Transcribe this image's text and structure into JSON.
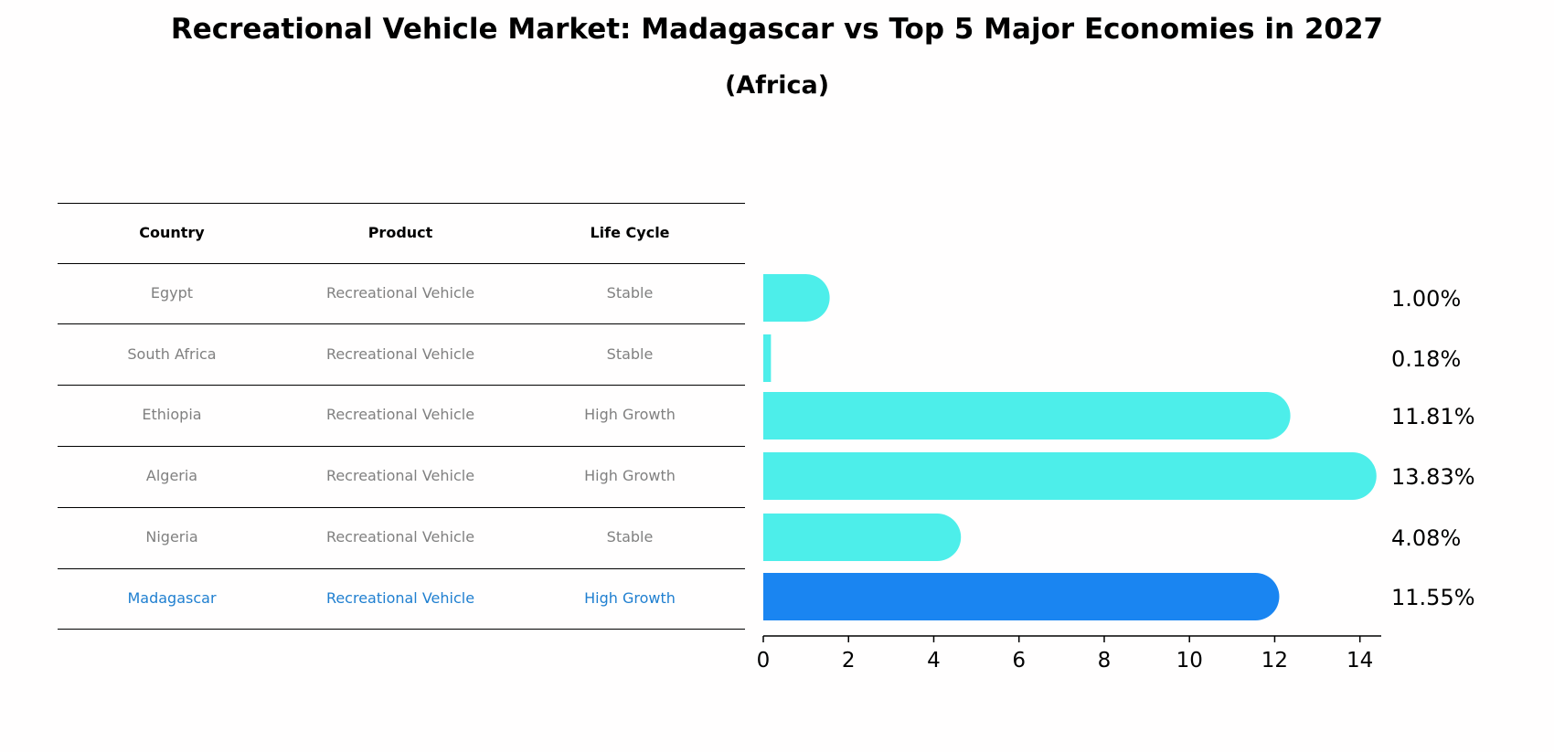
{
  "title": "Recreational Vehicle Market: Madagascar vs Top 5 Major Economies in 2027",
  "subtitle": "(Africa)",
  "colors": {
    "bar": "#4deeea",
    "highlight": "#1a85f1",
    "muted_text": "#808080",
    "highlight_text": "#1f7fd0"
  },
  "table": {
    "headers": [
      "Country",
      "Product",
      "Life Cycle"
    ],
    "rows": [
      {
        "country": "Egypt",
        "product": "Recreational Vehicle",
        "life_cycle": "Stable",
        "highlight": false
      },
      {
        "country": "South Africa",
        "product": "Recreational Vehicle",
        "life_cycle": "Stable",
        "highlight": false
      },
      {
        "country": "Ethiopia",
        "product": "Recreational Vehicle",
        "life_cycle": "High Growth",
        "highlight": false
      },
      {
        "country": "Algeria",
        "product": "Recreational Vehicle",
        "life_cycle": "High Growth",
        "highlight": false
      },
      {
        "country": "Nigeria",
        "product": "Recreational Vehicle",
        "life_cycle": "Stable",
        "highlight": false
      },
      {
        "country": "Madagascar",
        "product": "Recreational Vehicle",
        "life_cycle": "High Growth",
        "highlight": true
      }
    ]
  },
  "chart_data": {
    "type": "bar",
    "orientation": "horizontal",
    "categories": [
      "Egypt",
      "South Africa",
      "Ethiopia",
      "Algeria",
      "Nigeria",
      "Madagascar"
    ],
    "values": [
      1.0,
      0.18,
      11.81,
      13.83,
      4.08,
      11.55
    ],
    "value_labels": [
      "1.00%",
      "0.18%",
      "11.81%",
      "13.83%",
      "4.08%",
      "11.55%"
    ],
    "highlight_category": "Madagascar",
    "xlim": [
      0,
      14.5
    ],
    "xticks": [
      0,
      2,
      4,
      6,
      8,
      10,
      12,
      14
    ],
    "xtick_labels": [
      "0",
      "2",
      "4",
      "6",
      "8",
      "10",
      "12",
      "14"
    ],
    "title": "Recreational Vehicle Market: Madagascar vs Top 5 Major Economies in 2027",
    "subtitle": "(Africa)",
    "xlabel": "",
    "ylabel": ""
  }
}
